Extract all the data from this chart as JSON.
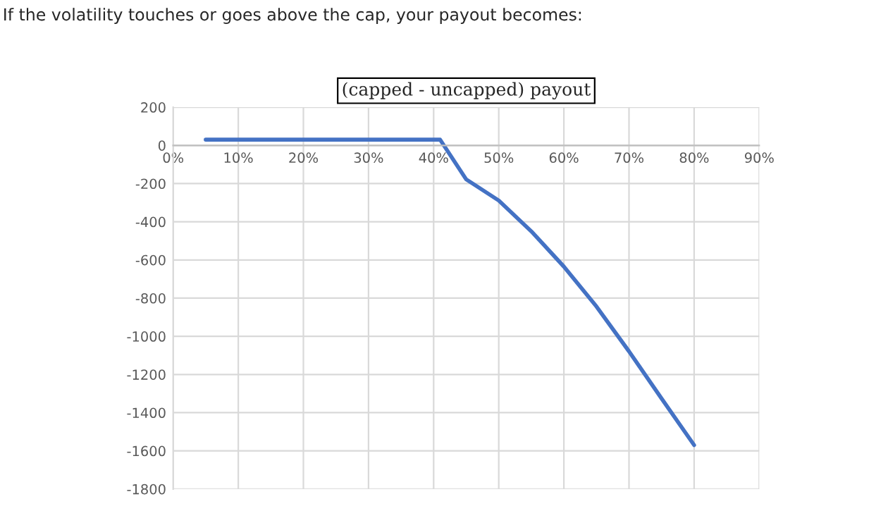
{
  "chart_data": {
    "type": "line",
    "title": "(capped - uncapped) payout",
    "annotations": [
      "If the volatility touches or goes above the cap, your payout becomes:"
    ],
    "x": [
      5,
      41,
      45,
      50,
      55,
      60,
      65,
      70,
      75,
      80
    ],
    "series": [
      {
        "color": "#4472c4",
        "values": [
          30,
          30,
          -178,
          -289,
          -450,
          -635,
          -844,
          -1079,
          -1326,
          -1570
        ]
      }
    ],
    "xlim": [
      0,
      90
    ],
    "xticks": [
      {
        "value": 0,
        "label": "0%"
      },
      {
        "value": 10,
        "label": "10%"
      },
      {
        "value": 20,
        "label": "20%"
      },
      {
        "value": 30,
        "label": "30%"
      },
      {
        "value": 40,
        "label": "40%"
      },
      {
        "value": 50,
        "label": "50%"
      },
      {
        "value": 60,
        "label": "60%"
      },
      {
        "value": 70,
        "label": "70%"
      },
      {
        "value": 80,
        "label": "80%"
      },
      {
        "value": 90,
        "label": "90%"
      }
    ],
    "ylim": [
      -1800,
      200
    ],
    "yticks": [
      200,
      0,
      -200,
      -400,
      -600,
      -800,
      -1000,
      -1200,
      -1400,
      -1600,
      -1800
    ],
    "grid": true,
    "legend": false,
    "marker": "none",
    "line_style": "solid"
  }
}
